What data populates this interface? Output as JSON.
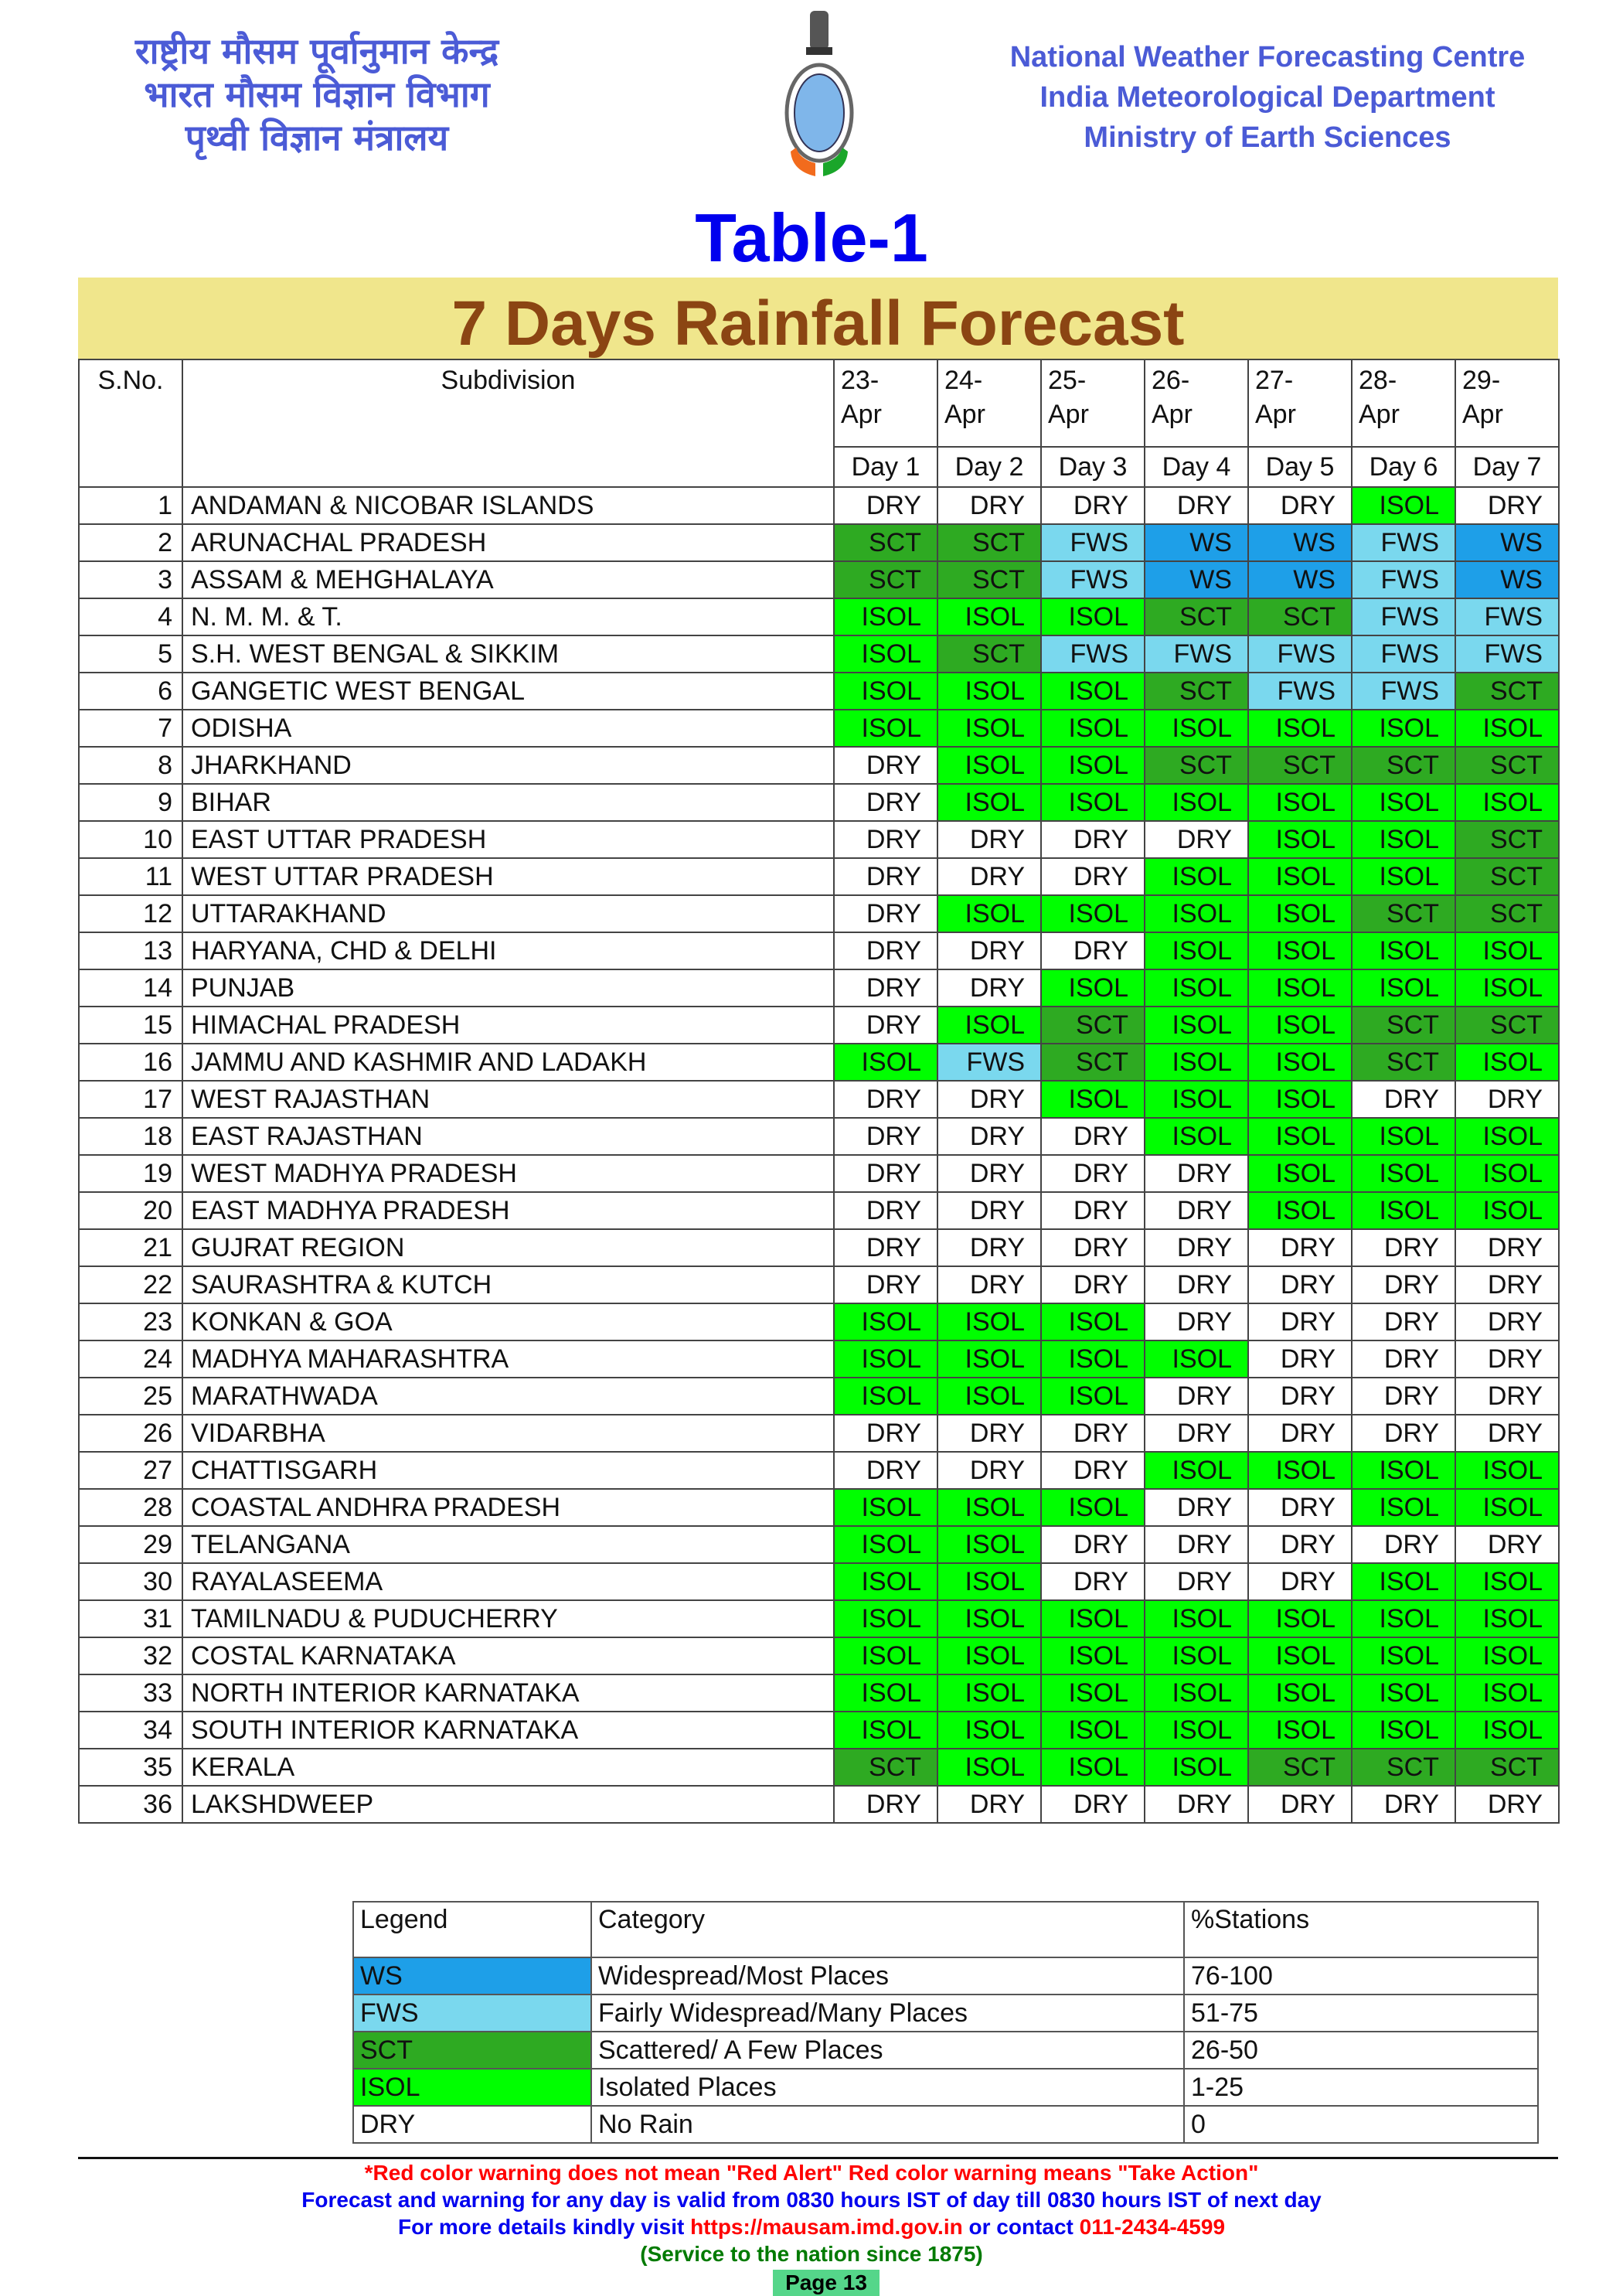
{
  "header": {
    "hindi_lines": [
      "राष्ट्रीय मौसम पूर्वानुमान केन्द्र",
      "भारत मौसम विज्ञान विभाग",
      "पृथ्वी विज्ञान मंत्रालय"
    ],
    "english_lines": [
      "National Weather Forecasting Centre",
      "India Meteorological Department",
      "Ministry of Earth Sciences"
    ],
    "logo": "IMD emblem"
  },
  "table_label": "Table-1",
  "title": "7 Days Rainfall Forecast",
  "colors": {
    "WS": "#1e9fe8",
    "FWS": "#7ad8ee",
    "SCT": "#2eaa22",
    "ISOL": "#00ff00",
    "DRY": "#ffffff",
    "title": "#8b4513",
    "band": "#f0e68c"
  },
  "columns": {
    "sno": "S.No.",
    "subdivision": "Subdivision",
    "dates": [
      "23-Apr",
      "24-Apr",
      "25-Apr",
      "26-Apr",
      "27-Apr",
      "28-Apr",
      "29-Apr"
    ],
    "days": [
      "Day 1",
      "Day 2",
      "Day 3",
      "Day 4",
      "Day 5",
      "Day 6",
      "Day 7"
    ]
  },
  "rows": [
    {
      "sno": "1",
      "name": "ANDAMAN & NICOBAR ISLANDS",
      "v": [
        "DRY",
        "DRY",
        "DRY",
        "DRY",
        "DRY",
        "ISOL",
        "DRY"
      ]
    },
    {
      "sno": "2",
      "name": "ARUNACHAL PRADESH",
      "v": [
        "SCT",
        "SCT",
        "FWS",
        "WS",
        "WS",
        "FWS",
        "WS"
      ]
    },
    {
      "sno": "3",
      "name": "ASSAM & MEHGHALAYA",
      "v": [
        "SCT",
        "SCT",
        "FWS",
        "WS",
        "WS",
        "FWS",
        "WS"
      ]
    },
    {
      "sno": "4",
      "name": "N. M. M. & T.",
      "v": [
        "ISOL",
        "ISOL",
        "ISOL",
        "SCT",
        "SCT",
        "FWS",
        "FWS"
      ]
    },
    {
      "sno": "5",
      "name": "S.H. WEST BENGAL & SIKKIM",
      "v": [
        "ISOL",
        "SCT",
        "FWS",
        "FWS",
        "FWS",
        "FWS",
        "FWS"
      ]
    },
    {
      "sno": "6",
      "name": "GANGETIC WEST BENGAL",
      "v": [
        "ISOL",
        "ISOL",
        "ISOL",
        "SCT",
        "FWS",
        "FWS",
        "SCT"
      ]
    },
    {
      "sno": "7",
      "name": "ODISHA",
      "v": [
        "ISOL",
        "ISOL",
        "ISOL",
        "ISOL",
        "ISOL",
        "ISOL",
        "ISOL"
      ]
    },
    {
      "sno": "8",
      "name": "JHARKHAND",
      "v": [
        "DRY",
        "ISOL",
        "ISOL",
        "SCT",
        "SCT",
        "SCT",
        "SCT"
      ]
    },
    {
      "sno": "9",
      "name": "BIHAR",
      "v": [
        "DRY",
        "ISOL",
        "ISOL",
        "ISOL",
        "ISOL",
        "ISOL",
        "ISOL"
      ]
    },
    {
      "sno": "10",
      "name": "EAST UTTAR PRADESH",
      "v": [
        "DRY",
        "DRY",
        "DRY",
        "DRY",
        "ISOL",
        "ISOL",
        "SCT"
      ]
    },
    {
      "sno": "11",
      "name": "WEST UTTAR PRADESH",
      "v": [
        "DRY",
        "DRY",
        "DRY",
        "ISOL",
        "ISOL",
        "ISOL",
        "SCT"
      ]
    },
    {
      "sno": "12",
      "name": "UTTARAKHAND",
      "v": [
        "DRY",
        "ISOL",
        "ISOL",
        "ISOL",
        "ISOL",
        "SCT",
        "SCT"
      ]
    },
    {
      "sno": "13",
      "name": "HARYANA, CHD & DELHI",
      "v": [
        "DRY",
        "DRY",
        "DRY",
        "ISOL",
        "ISOL",
        "ISOL",
        "ISOL"
      ]
    },
    {
      "sno": "14",
      "name": "PUNJAB",
      "v": [
        "DRY",
        "DRY",
        "ISOL",
        "ISOL",
        "ISOL",
        "ISOL",
        "ISOL"
      ]
    },
    {
      "sno": "15",
      "name": "HIMACHAL PRADESH",
      "v": [
        "DRY",
        "ISOL",
        "SCT",
        "ISOL",
        "ISOL",
        "SCT",
        "SCT"
      ]
    },
    {
      "sno": "16",
      "name": "JAMMU AND KASHMIR AND LADAKH",
      "v": [
        "ISOL",
        "FWS",
        "SCT",
        "ISOL",
        "ISOL",
        "SCT",
        "ISOL"
      ]
    },
    {
      "sno": "17",
      "name": "WEST RAJASTHAN",
      "v": [
        "DRY",
        "DRY",
        "ISOL",
        "ISOL",
        "ISOL",
        "DRY",
        "DRY"
      ]
    },
    {
      "sno": "18",
      "name": "EAST RAJASTHAN",
      "v": [
        "DRY",
        "DRY",
        "DRY",
        "ISOL",
        "ISOL",
        "ISOL",
        "ISOL"
      ]
    },
    {
      "sno": "19",
      "name": "WEST MADHYA PRADESH",
      "v": [
        "DRY",
        "DRY",
        "DRY",
        "DRY",
        "ISOL",
        "ISOL",
        "ISOL"
      ]
    },
    {
      "sno": "20",
      "name": "EAST MADHYA PRADESH",
      "v": [
        "DRY",
        "DRY",
        "DRY",
        "DRY",
        "ISOL",
        "ISOL",
        "ISOL"
      ]
    },
    {
      "sno": "21",
      "name": "GUJRAT REGION",
      "v": [
        "DRY",
        "DRY",
        "DRY",
        "DRY",
        "DRY",
        "DRY",
        "DRY"
      ]
    },
    {
      "sno": "22",
      "name": "SAURASHTRA & KUTCH",
      "v": [
        "DRY",
        "DRY",
        "DRY",
        "DRY",
        "DRY",
        "DRY",
        "DRY"
      ]
    },
    {
      "sno": "23",
      "name": "KONKAN & GOA",
      "v": [
        "ISOL",
        "ISOL",
        "ISOL",
        "DRY",
        "DRY",
        "DRY",
        "DRY"
      ]
    },
    {
      "sno": "24",
      "name": "MADHYA MAHARASHTRA",
      "v": [
        "ISOL",
        "ISOL",
        "ISOL",
        "ISOL",
        "DRY",
        "DRY",
        "DRY"
      ]
    },
    {
      "sno": "25",
      "name": "MARATHWADA",
      "v": [
        "ISOL",
        "ISOL",
        "ISOL",
        "DRY",
        "DRY",
        "DRY",
        "DRY"
      ]
    },
    {
      "sno": "26",
      "name": "VIDARBHA",
      "v": [
        "DRY",
        "DRY",
        "DRY",
        "DRY",
        "DRY",
        "DRY",
        "DRY"
      ]
    },
    {
      "sno": "27",
      "name": "CHATTISGARH",
      "v": [
        "DRY",
        "DRY",
        "DRY",
        "ISOL",
        "ISOL",
        "ISOL",
        "ISOL"
      ]
    },
    {
      "sno": "28",
      "name": "COASTAL ANDHRA PRADESH",
      "v": [
        "ISOL",
        "ISOL",
        "ISOL",
        "DRY",
        "DRY",
        "ISOL",
        "ISOL"
      ]
    },
    {
      "sno": "29",
      "name": "TELANGANA",
      "v": [
        "ISOL",
        "ISOL",
        "DRY",
        "DRY",
        "DRY",
        "DRY",
        "DRY"
      ]
    },
    {
      "sno": "30",
      "name": "RAYALASEEMA",
      "v": [
        "ISOL",
        "ISOL",
        "DRY",
        "DRY",
        "DRY",
        "ISOL",
        "ISOL"
      ]
    },
    {
      "sno": "31",
      "name": "TAMILNADU & PUDUCHERRY",
      "v": [
        "ISOL",
        "ISOL",
        "ISOL",
        "ISOL",
        "ISOL",
        "ISOL",
        "ISOL"
      ]
    },
    {
      "sno": "32",
      "name": "COSTAL KARNATAKA",
      "v": [
        "ISOL",
        "ISOL",
        "ISOL",
        "ISOL",
        "ISOL",
        "ISOL",
        "ISOL"
      ]
    },
    {
      "sno": "33",
      "name": "NORTH INTERIOR KARNATAKA",
      "v": [
        "ISOL",
        "ISOL",
        "ISOL",
        "ISOL",
        "ISOL",
        "ISOL",
        "ISOL"
      ]
    },
    {
      "sno": "34",
      "name": "SOUTH INTERIOR KARNATAKA",
      "v": [
        "ISOL",
        "ISOL",
        "ISOL",
        "ISOL",
        "ISOL",
        "ISOL",
        "ISOL"
      ]
    },
    {
      "sno": "35",
      "name": "KERALA",
      "v": [
        "SCT",
        "ISOL",
        "ISOL",
        "ISOL",
        "SCT",
        "SCT",
        "SCT"
      ]
    },
    {
      "sno": "36",
      "name": "LAKSHDWEEP",
      "v": [
        "DRY",
        "DRY",
        "DRY",
        "DRY",
        "DRY",
        "DRY",
        "DRY"
      ]
    }
  ],
  "legend": {
    "headers": [
      "Legend",
      "Category",
      "%Stations"
    ],
    "items": [
      {
        "code": "WS",
        "category": "Widespread/Most Places",
        "stations": "76-100"
      },
      {
        "code": "FWS",
        "category": "Fairly Widespread/Many Places",
        "stations": "51-75"
      },
      {
        "code": "SCT",
        "category": "Scattered/ A Few Places",
        "stations": "26-50"
      },
      {
        "code": "ISOL",
        "category": "Isolated Places",
        "stations": "1-25"
      },
      {
        "code": "DRY",
        "category": "No Rain",
        "stations": "0"
      }
    ]
  },
  "footer": {
    "warning": "*Red color warning does not mean \"Red Alert\" Red color warning means \"Take Action\"",
    "validity": "Forecast and warning for any day is valid from 0830 hours IST of day till 0830 hours IST of next day",
    "details_prefix": "For more details kindly visit ",
    "url": "https://mausam.imd.gov.in",
    "details_mid": " or contact ",
    "phone": "011-2434-4599",
    "service": "(Service to the nation since 1875)",
    "page": "Page 13"
  }
}
